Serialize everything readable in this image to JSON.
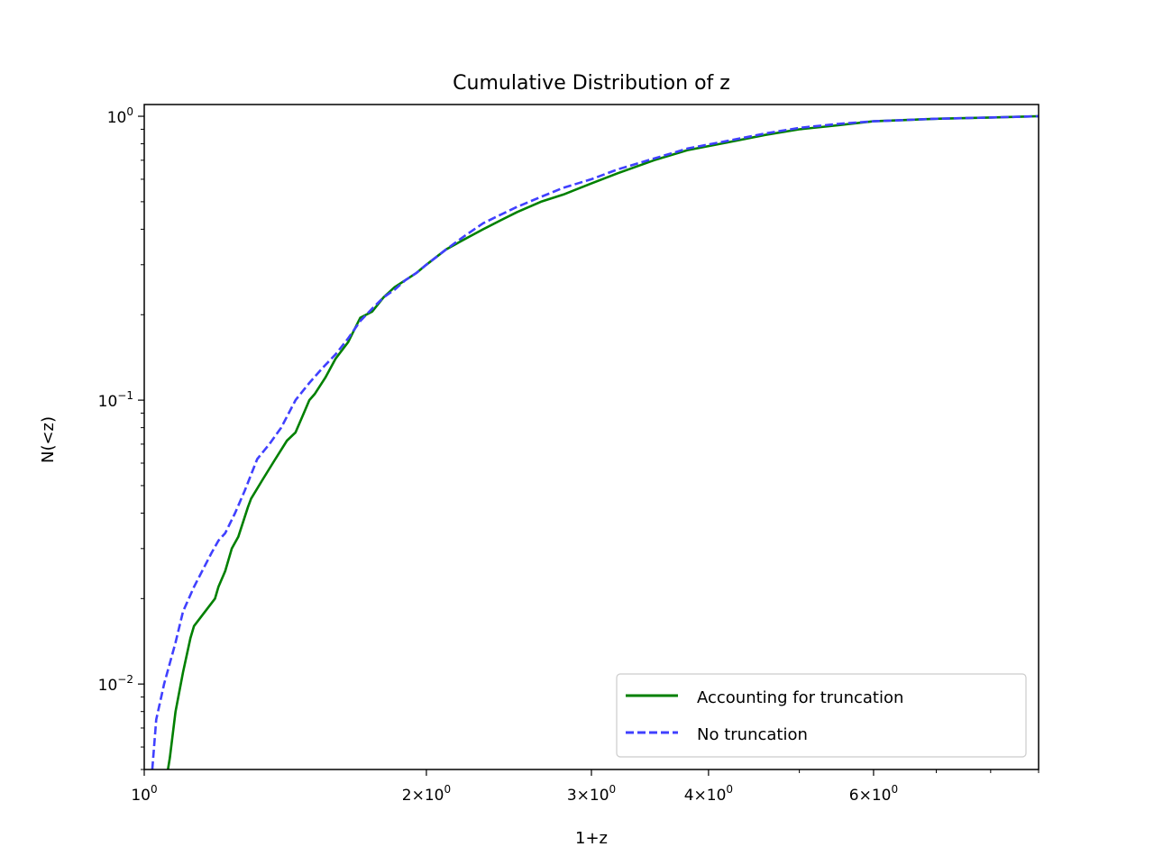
{
  "chart_data": {
    "type": "line",
    "title": "Cumulative Distribution of z",
    "xlabel": "1+z",
    "ylabel": "N(<z)",
    "xscale": "log",
    "yscale": "log",
    "xlim": [
      1.0,
      9.0
    ],
    "ylim": [
      0.005,
      1.1
    ],
    "grid": false,
    "legend_position": "lower-right",
    "x_major_ticks": [
      {
        "value": 1,
        "mantissa": "",
        "exponent": "0"
      },
      {
        "value": 2,
        "mantissa": "2",
        "exponent": "0"
      },
      {
        "value": 3,
        "mantissa": "3",
        "exponent": "0"
      },
      {
        "value": 4,
        "mantissa": "4",
        "exponent": "0"
      },
      {
        "value": 6,
        "mantissa": "6",
        "exponent": "0"
      }
    ],
    "x_minor_ticks": [
      5,
      7,
      8,
      9
    ],
    "y_major_ticks": [
      {
        "value": 1,
        "exponent": "0"
      },
      {
        "value": 0.1,
        "exponent": "−1"
      },
      {
        "value": 0.01,
        "exponent": "−2"
      }
    ],
    "series": [
      {
        "name": "Accounting for truncation",
        "color": "#008000",
        "style": "solid",
        "x": [
          1.06,
          1.065,
          1.08,
          1.1,
          1.12,
          1.13,
          1.19,
          1.2,
          1.22,
          1.24,
          1.26,
          1.29,
          1.3,
          1.34,
          1.38,
          1.42,
          1.45,
          1.48,
          1.5,
          1.52,
          1.56,
          1.6,
          1.65,
          1.7,
          1.75,
          1.8,
          1.85,
          1.9,
          1.95,
          2.0,
          2.1,
          2.2,
          2.3,
          2.4,
          2.5,
          2.65,
          2.8,
          3.0,
          3.2,
          3.5,
          3.8,
          4.2,
          4.6,
          5.0,
          5.5,
          6.0,
          7.0,
          8.0,
          9.0
        ],
        "y": [
          0.005,
          0.0055,
          0.008,
          0.011,
          0.0145,
          0.016,
          0.02,
          0.022,
          0.025,
          0.03,
          0.033,
          0.042,
          0.045,
          0.053,
          0.062,
          0.072,
          0.077,
          0.09,
          0.1,
          0.105,
          0.12,
          0.14,
          0.16,
          0.195,
          0.205,
          0.23,
          0.25,
          0.265,
          0.28,
          0.3,
          0.34,
          0.37,
          0.4,
          0.43,
          0.46,
          0.5,
          0.53,
          0.58,
          0.63,
          0.7,
          0.76,
          0.81,
          0.86,
          0.9,
          0.93,
          0.96,
          0.98,
          0.99,
          1.0
        ]
      },
      {
        "name": "No truncation",
        "color": "#4040ff",
        "style": "dashed",
        "x": [
          1.02,
          1.03,
          1.05,
          1.08,
          1.1,
          1.13,
          1.18,
          1.2,
          1.22,
          1.25,
          1.28,
          1.32,
          1.36,
          1.4,
          1.45,
          1.5,
          1.55,
          1.6,
          1.65,
          1.7,
          1.75,
          1.8,
          1.85,
          1.9,
          1.95,
          2.0,
          2.1,
          2.2,
          2.3,
          2.4,
          2.5,
          2.65,
          2.8,
          3.0,
          3.2,
          3.5,
          3.8,
          4.2,
          4.6,
          5.0,
          5.5,
          6.0,
          7.0,
          8.0,
          9.0
        ],
        "y": [
          0.005,
          0.0075,
          0.01,
          0.014,
          0.018,
          0.022,
          0.029,
          0.032,
          0.034,
          0.04,
          0.048,
          0.062,
          0.07,
          0.08,
          0.1,
          0.115,
          0.13,
          0.145,
          0.165,
          0.19,
          0.21,
          0.23,
          0.245,
          0.265,
          0.28,
          0.3,
          0.34,
          0.38,
          0.42,
          0.45,
          0.48,
          0.52,
          0.56,
          0.6,
          0.65,
          0.71,
          0.77,
          0.82,
          0.87,
          0.91,
          0.94,
          0.96,
          0.98,
          0.99,
          1.0
        ]
      }
    ]
  }
}
